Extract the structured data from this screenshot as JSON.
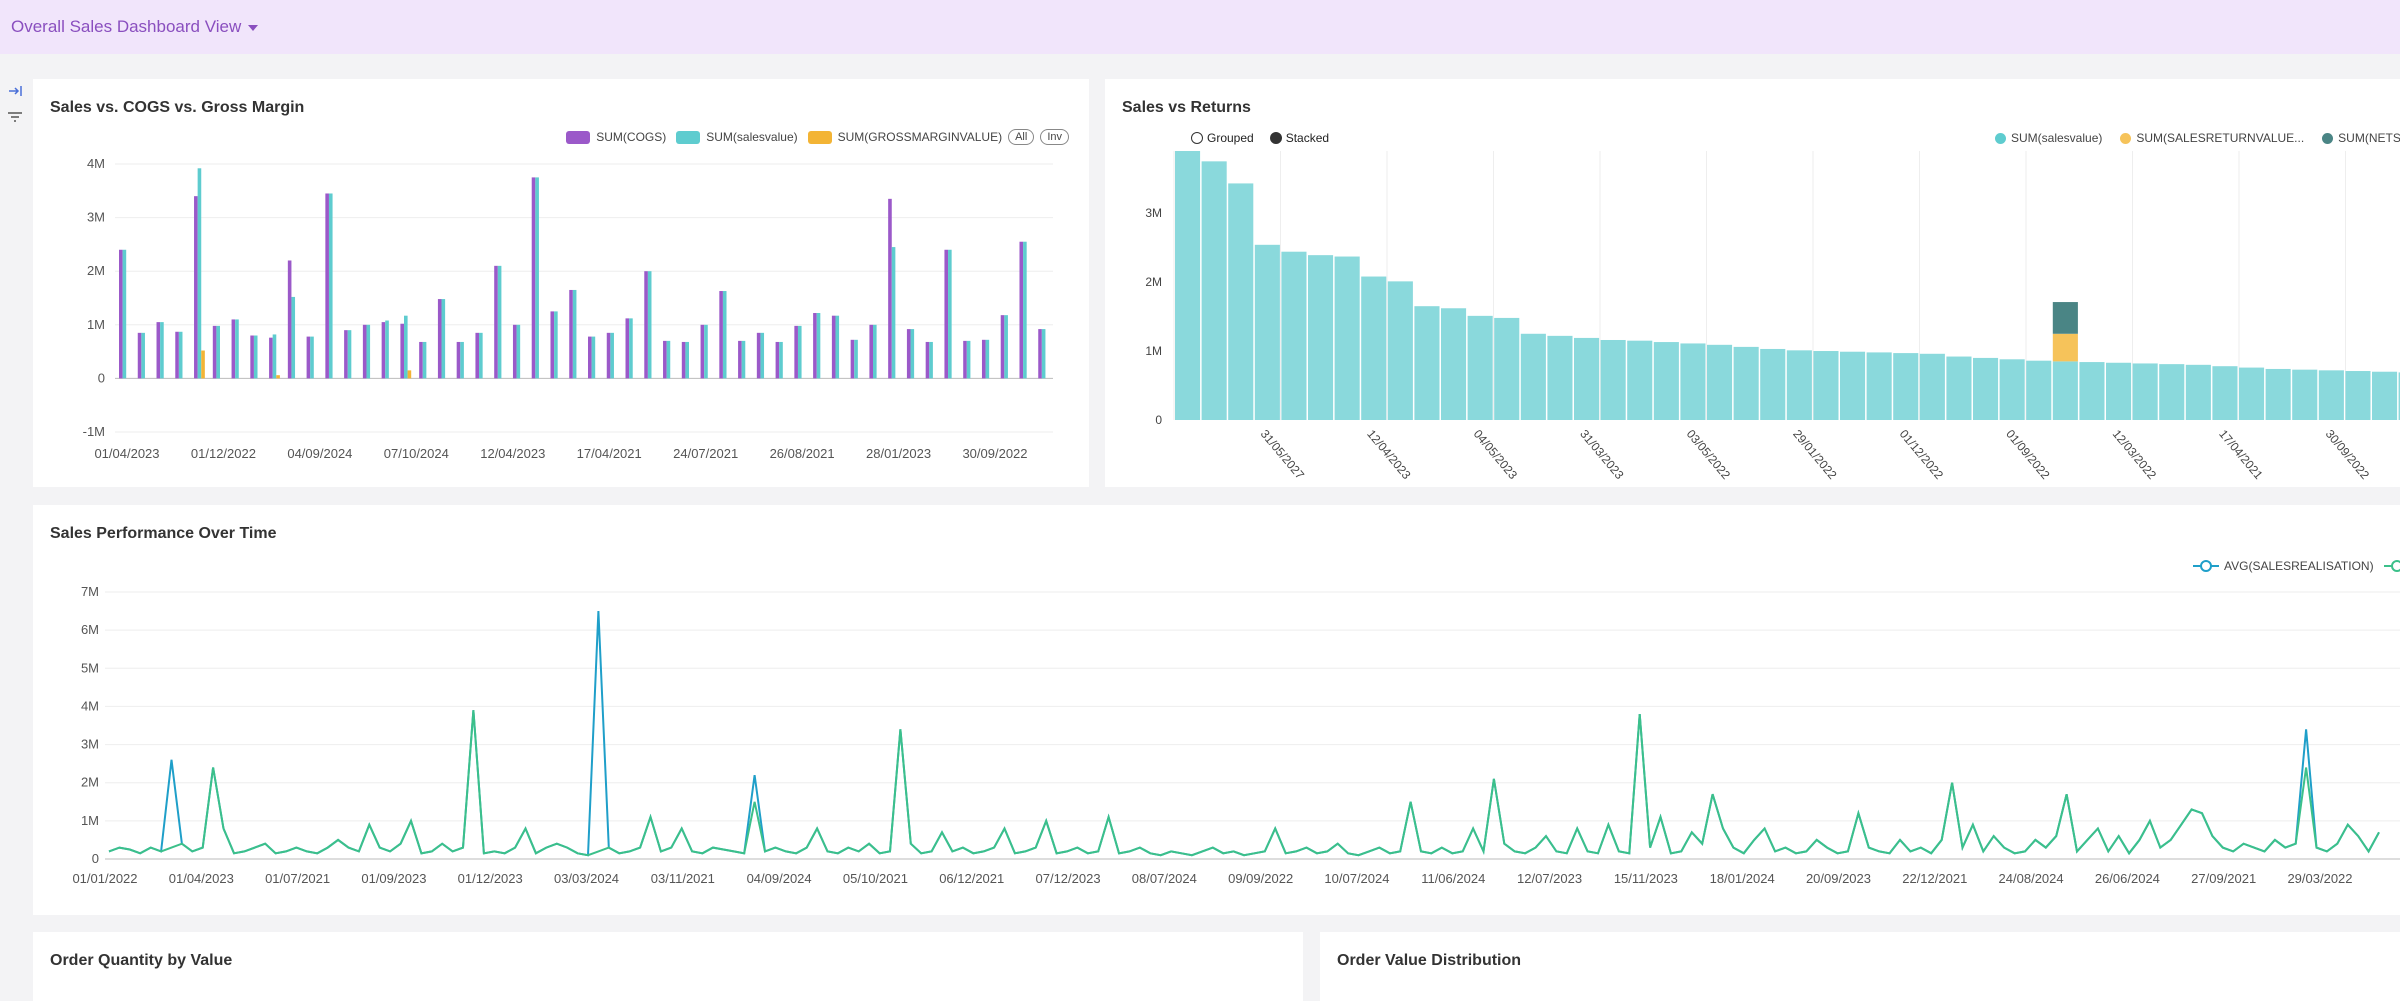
{
  "header": {
    "title": "Overall Sales Dashboard View"
  },
  "sidebar": {
    "icons": [
      "collapse-arrow-icon",
      "filter-icon"
    ]
  },
  "colors": {
    "cogs": "#9b59c9",
    "sales": "#5ecccf",
    "gm": "#f3b435",
    "returns": "#f6c35a",
    "net": "#4a8585",
    "line1": "#1f9fc9",
    "line2": "#3cc08a"
  },
  "panel1": {
    "title": "Sales vs. COGS vs. Gross Margin",
    "legend": [
      "SUM(COGS)",
      "SUM(salesvalue)",
      "SUM(GROSSMARGINVALUE)"
    ],
    "all_label": "All",
    "inv_label": "Inv"
  },
  "panel2": {
    "title": "Sales vs Returns",
    "grouped_label": "Grouped",
    "stacked_label": "Stacked",
    "legend": [
      "SUM(salesvalue)",
      "SUM(SALESRETURNVALUE...",
      "SUM(NETS"
    ]
  },
  "panel3": {
    "title": "Sales Performance Over Time",
    "legend": [
      "AVG(SALESREALISATION)"
    ]
  },
  "panel4": {
    "title": "Order Quantity by Value"
  },
  "panel5": {
    "title": "Order Value Distribution"
  },
  "chart_data": [
    {
      "type": "bar",
      "title": "Sales vs. COGS vs. Gross Margin",
      "ylim": [
        -1000000,
        4000000
      ],
      "yticks": [
        "4M",
        "3M",
        "2M",
        "1M",
        "0",
        "-1M"
      ],
      "xticks": [
        "01/04/2023",
        "01/12/2022",
        "04/09/2024",
        "07/10/2024",
        "12/04/2023",
        "17/04/2021",
        "24/07/2021",
        "26/08/2021",
        "28/01/2023",
        "30/09/2022"
      ],
      "series": [
        {
          "name": "SUM(COGS)",
          "values": [
            2400000,
            850000,
            1050000,
            870000,
            3400000,
            980000,
            1100000,
            800000,
            760000,
            2200000,
            780000,
            3450000,
            900000,
            1000000,
            1050000,
            1020000,
            680000,
            1480000,
            680000,
            850000,
            2100000,
            1000000,
            3750000,
            1250000,
            1650000,
            780000,
            850000,
            1120000,
            2000000,
            700000,
            680000,
            1000000,
            1630000,
            700000,
            850000,
            680000,
            980000,
            1220000,
            1170000,
            720000,
            1000000,
            3350000,
            920000,
            680000,
            2400000,
            700000,
            720000,
            1180000,
            2550000,
            920000
          ]
        },
        {
          "name": "SUM(salesvalue)",
          "values": [
            2400000,
            850000,
            1050000,
            870000,
            3920000,
            980000,
            1100000,
            800000,
            820000,
            1520000,
            780000,
            3450000,
            900000,
            1000000,
            1080000,
            1170000,
            680000,
            1480000,
            680000,
            850000,
            2100000,
            1000000,
            3750000,
            1250000,
            1650000,
            780000,
            850000,
            1120000,
            2000000,
            700000,
            680000,
            1000000,
            1630000,
            700000,
            850000,
            680000,
            980000,
            1220000,
            1170000,
            720000,
            1000000,
            2450000,
            920000,
            680000,
            2400000,
            700000,
            720000,
            1180000,
            2550000,
            920000
          ]
        },
        {
          "name": "SUM(GROSSMARGINVALUE)",
          "values": [
            0,
            0,
            0,
            0,
            520000,
            0,
            0,
            0,
            60000,
            0,
            0,
            0,
            0,
            0,
            0,
            150000,
            0,
            0,
            0,
            0,
            0,
            0,
            0,
            0,
            0,
            0,
            0,
            0,
            0,
            0,
            0,
            0,
            0,
            0,
            0,
            0,
            0,
            0,
            0,
            0,
            0,
            0,
            0,
            0,
            0,
            0,
            0,
            0,
            0,
            0
          ]
        }
      ]
    },
    {
      "type": "bar",
      "title": "Sales vs Returns",
      "ylim": [
        0,
        3900000
      ],
      "yticks": [
        "3M",
        "2M",
        "1M",
        "0"
      ],
      "xticks": [
        "31/05/2027",
        "12/04/2023",
        "04/05/2023",
        "31/03/2023",
        "03/05/2022",
        "29/01/2022",
        "01/12/2022",
        "01/09/2022",
        "12/03/2022",
        "17/04/2021",
        "30/09/2022"
      ],
      "series": [
        {
          "name": "SUM(salesvalue)",
          "values": [
            3900000,
            3750000,
            3430000,
            2540000,
            2440000,
            2390000,
            2370000,
            2080000,
            2010000,
            1650000,
            1620000,
            1510000,
            1480000,
            1250000,
            1220000,
            1190000,
            1160000,
            1150000,
            1130000,
            1110000,
            1090000,
            1060000,
            1030000,
            1010000,
            1000000,
            990000,
            980000,
            970000,
            960000,
            920000,
            900000,
            880000,
            860000,
            850000,
            840000,
            830000,
            820000,
            810000,
            800000,
            780000,
            760000,
            740000,
            730000,
            720000,
            710000,
            700000,
            690000,
            680000
          ]
        },
        {
          "name": "SUM(SALESRETURNVALUE...",
          "index": 33,
          "value": 400000
        },
        {
          "name": "SUM(NETS",
          "index": 33,
          "value": 460000
        }
      ]
    },
    {
      "type": "line",
      "title": "Sales Performance Over Time",
      "ylim": [
        0,
        7000000
      ],
      "yticks": [
        "7M",
        "6M",
        "5M",
        "4M",
        "3M",
        "2M",
        "1M",
        "0"
      ],
      "xticks": [
        "01/01/2022",
        "01/04/2023",
        "01/07/2021",
        "01/09/2023",
        "01/12/2023",
        "03/03/2024",
        "03/11/2021",
        "04/09/2024",
        "05/10/2021",
        "06/12/2021",
        "07/12/2023",
        "08/07/2024",
        "09/09/2022",
        "10/07/2024",
        "11/06/2024",
        "12/07/2023",
        "15/11/2023",
        "18/01/2024",
        "20/09/2023",
        "22/12/2021",
        "24/08/2024",
        "26/06/2024",
        "27/09/2021",
        "29/03/2022"
      ],
      "series": [
        {
          "name": "AVG(SALESREALISATION)",
          "values": [
            200000,
            300000,
            250000,
            150000,
            300000,
            200000,
            2600000,
            400000,
            200000,
            300000,
            2400000,
            800000,
            150000,
            200000,
            300000,
            400000,
            150000,
            200000,
            300000,
            200000,
            150000,
            300000,
            500000,
            300000,
            200000,
            900000,
            300000,
            200000,
            400000,
            1000000,
            150000,
            200000,
            400000,
            200000,
            300000,
            3900000,
            150000,
            200000,
            150000,
            300000,
            800000,
            150000,
            300000,
            400000,
            300000,
            150000,
            100000,
            6500000,
            300000,
            150000,
            200000,
            300000,
            1100000,
            200000,
            300000,
            800000,
            200000,
            150000,
            300000,
            250000,
            200000,
            150000,
            2200000,
            200000,
            300000,
            200000,
            150000,
            300000,
            800000,
            200000,
            150000,
            300000,
            200000,
            400000,
            150000,
            200000,
            3400000,
            400000,
            150000,
            200000,
            700000,
            200000,
            300000,
            150000,
            200000,
            300000,
            800000,
            150000,
            200000,
            300000,
            1000000,
            150000,
            200000,
            300000,
            150000,
            200000,
            1100000,
            150000,
            200000,
            300000,
            150000,
            100000,
            200000,
            150000,
            100000,
            200000,
            300000,
            150000,
            200000,
            100000,
            150000,
            200000,
            800000,
            150000,
            200000,
            300000,
            150000,
            200000,
            400000,
            150000,
            100000,
            200000,
            300000,
            150000,
            200000,
            1500000,
            200000,
            150000,
            300000,
            150000,
            200000,
            800000,
            200000,
            2100000,
            400000,
            200000,
            150000,
            300000,
            600000,
            200000,
            150000,
            800000,
            200000,
            150000,
            900000,
            200000,
            150000,
            3800000,
            300000,
            1100000,
            150000,
            200000,
            700000,
            400000,
            1700000,
            800000,
            300000,
            150000,
            500000,
            800000,
            200000,
            300000,
            150000,
            200000,
            500000,
            300000,
            150000,
            200000,
            1200000,
            300000,
            200000,
            150000,
            500000,
            200000,
            300000,
            150000,
            500000,
            2000000,
            300000,
            900000,
            200000,
            600000,
            300000,
            150000,
            200000,
            500000,
            300000,
            600000,
            1700000,
            200000,
            500000,
            800000,
            200000,
            600000,
            150000,
            500000,
            1000000,
            300000,
            500000,
            900000,
            1300000,
            1200000,
            600000,
            300000,
            200000,
            400000,
            300000,
            200000,
            500000,
            300000,
            400000,
            3400000,
            300000,
            200000,
            400000,
            900000,
            600000,
            200000,
            700000
          ]
        }
      ]
    }
  ]
}
